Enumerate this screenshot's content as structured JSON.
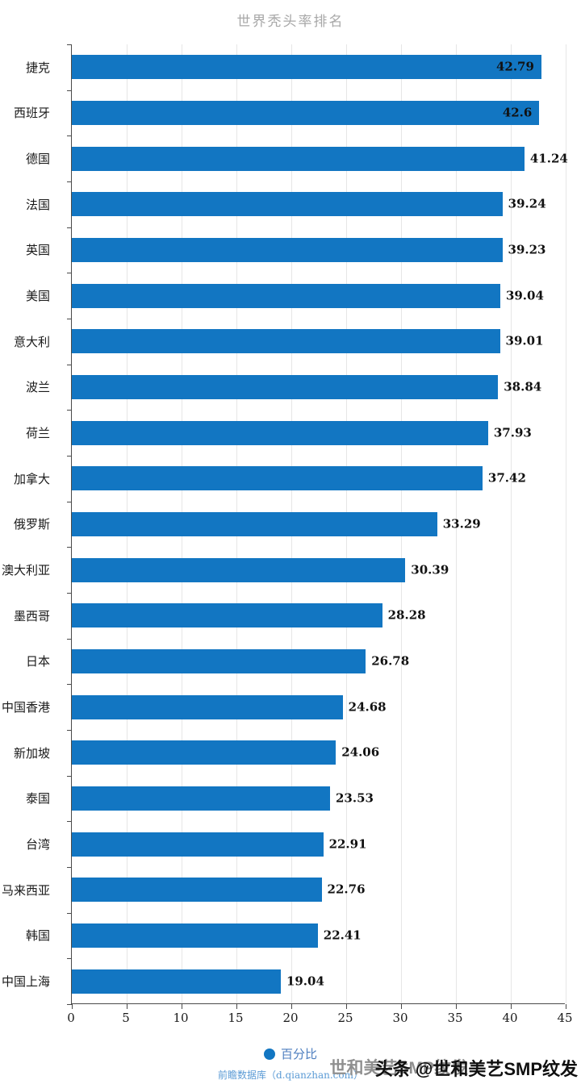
{
  "chart_data": {
    "type": "bar",
    "orientation": "horizontal",
    "title": "世界秃头率排名",
    "legend": "百分比",
    "bar_color": "#1276c2",
    "xlim": [
      0,
      45
    ],
    "x_ticks": [
      0,
      5,
      10,
      15,
      20,
      25,
      30,
      35,
      40,
      45
    ],
    "grid": true,
    "legend_position": "bottom",
    "categories": [
      "捷克",
      "西班牙",
      "德国",
      "法国",
      "英国",
      "美国",
      "意大利",
      "波兰",
      "荷兰",
      "加拿大",
      "俄罗斯",
      "澳大利亚",
      "墨西哥",
      "日本",
      "中国香港",
      "新加坡",
      "泰国",
      "台湾",
      "马来西亚",
      "韩国",
      "中国上海"
    ],
    "values": [
      42.79,
      42.6,
      41.24,
      39.24,
      39.23,
      39.04,
      39.01,
      38.84,
      37.93,
      37.42,
      33.29,
      30.39,
      28.28,
      26.78,
      24.68,
      24.06,
      23.53,
      22.91,
      22.76,
      22.41,
      19.04
    ]
  },
  "footer": {
    "source": "前瞻数据库（d.qianzhan.com）",
    "watermark": "头条 @世和美艺SMP纹发",
    "watermark_echo": "世和美艺SMP纹发"
  }
}
